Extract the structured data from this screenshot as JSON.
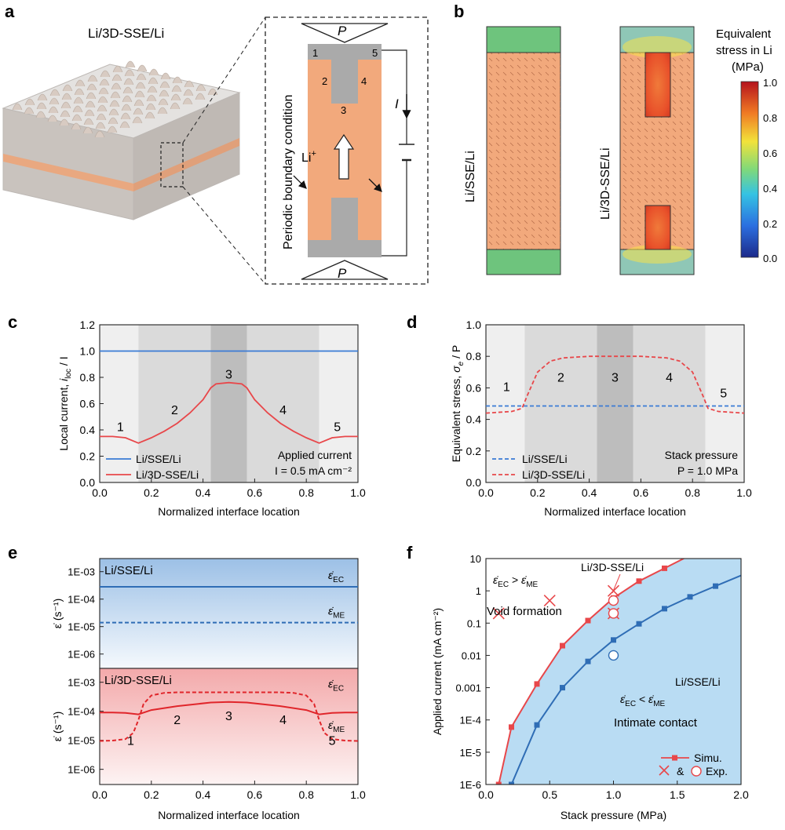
{
  "panel_a": {
    "label": "a",
    "title": "Li/3D-SSE/Li",
    "pressure": "P",
    "current": "I",
    "ion": "Li",
    "ion_sup": "+",
    "side_text": "Periodic boundary condition",
    "region_numbers": [
      "1",
      "2",
      "3",
      "4",
      "5"
    ],
    "colors": {
      "li": "#aaaaaa",
      "sse": "#f2a97c",
      "frame": "#222222"
    }
  },
  "panel_b": {
    "label": "b",
    "left_label": "Li/SSE/Li",
    "right_label": "Li/3D-SSE/Li",
    "colorbar_title_lines": [
      "Equivalent",
      "stress in Li",
      "(MPa)"
    ],
    "colorbar_ticks": [
      "1.0",
      "0.8",
      "0.6",
      "0.4",
      "0.2",
      "0.0"
    ],
    "colors": {
      "li_low_stress": "#6ec47d",
      "sse": "#f2a97c",
      "hot": "#e8502a"
    }
  },
  "chart_data": [
    {
      "panel": "c",
      "type": "line",
      "ylabel": "Local current, i_loc / I",
      "ylabel_main": "Local current, ",
      "ylabel_i": "i",
      "ylabel_sub": "loc",
      "ylabel_end": " / I",
      "xlabel": "Normalized interface location",
      "xlim": [
        0.0,
        1.0
      ],
      "ylim": [
        0.0,
        1.2
      ],
      "xticks": [
        "0.0",
        "0.2",
        "0.4",
        "0.6",
        "0.8",
        "1.0"
      ],
      "yticks": [
        "0.0",
        "0.2",
        "0.4",
        "0.6",
        "0.8",
        "1.0",
        "1.2"
      ],
      "region_labels": [
        "1",
        "2",
        "3",
        "4",
        "5"
      ],
      "series": [
        {
          "name": "Li/SSE/Li",
          "color": "#3a7bd5",
          "dashed": false,
          "x": [
            0.0,
            1.0
          ],
          "y": [
            1.0,
            1.0
          ]
        },
        {
          "name": "Li/3D-SSE/Li",
          "color": "#e8474a",
          "dashed": false,
          "x": [
            0.0,
            0.05,
            0.1,
            0.15,
            0.2,
            0.25,
            0.3,
            0.35,
            0.4,
            0.43,
            0.45,
            0.5,
            0.55,
            0.57,
            0.6,
            0.65,
            0.7,
            0.75,
            0.8,
            0.85,
            0.9,
            0.95,
            1.0
          ],
          "y": [
            0.35,
            0.35,
            0.34,
            0.3,
            0.34,
            0.39,
            0.45,
            0.53,
            0.63,
            0.72,
            0.75,
            0.76,
            0.75,
            0.72,
            0.63,
            0.53,
            0.45,
            0.39,
            0.34,
            0.3,
            0.34,
            0.35,
            0.35
          ]
        }
      ],
      "annotation_lines": [
        "Applied current",
        "I = 0.5 mA cm⁻²"
      ]
    },
    {
      "panel": "d",
      "type": "line",
      "ylabel": "Equivalent stress, σe / P",
      "ylabel_main": "Equivalent stress, ",
      "ylabel_sigma": "σ",
      "ylabel_sub": "e",
      "ylabel_end": " / P",
      "xlabel": "Normalized interface location",
      "xlim": [
        0.0,
        1.0
      ],
      "ylim": [
        0.0,
        1.0
      ],
      "xticks": [
        "0.0",
        "0.2",
        "0.4",
        "0.6",
        "0.8",
        "1.0"
      ],
      "yticks": [
        "0.0",
        "0.2",
        "0.4",
        "0.6",
        "0.8",
        "1.0"
      ],
      "region_labels": [
        "1",
        "2",
        "3",
        "4",
        "5"
      ],
      "series": [
        {
          "name": "Li/SSE/Li",
          "color": "#3a7bd5",
          "dashed": true,
          "x": [
            0.0,
            1.0
          ],
          "y": [
            0.485,
            0.485
          ]
        },
        {
          "name": "Li/3D-SSE/Li",
          "color": "#e8474a",
          "dashed": true,
          "x": [
            0.0,
            0.1,
            0.14,
            0.16,
            0.2,
            0.25,
            0.3,
            0.4,
            0.5,
            0.6,
            0.7,
            0.75,
            0.8,
            0.84,
            0.86,
            0.9,
            1.0
          ],
          "y": [
            0.44,
            0.45,
            0.47,
            0.55,
            0.7,
            0.77,
            0.79,
            0.8,
            0.8,
            0.8,
            0.79,
            0.77,
            0.7,
            0.55,
            0.47,
            0.45,
            0.44
          ]
        }
      ],
      "annotation_lines": [
        "Stack pressure",
        "P = 1.0 MPa"
      ]
    },
    {
      "panel": "e",
      "type": "line",
      "ylabel": "ε̇ (s⁻¹)",
      "xlabel": "Normalized interface location",
      "xlim": [
        0.0,
        1.0
      ],
      "yscale": "log",
      "ylim": [
        3e-07,
        0.003
      ],
      "xticks": [
        "0.0",
        "0.2",
        "0.4",
        "0.6",
        "0.8",
        "1.0"
      ],
      "yticks_top": [
        "1E-03",
        "1E-04",
        "1E-05",
        "1E-06"
      ],
      "yticks_bottom": [
        "1E-03",
        "1E-04",
        "1E-05",
        "1E-06"
      ],
      "top_title": "Li/SSE/Li",
      "bottom_title": "Li/3D-SSE/Li",
      "region_labels": [
        "1",
        "2",
        "3",
        "4",
        "5"
      ],
      "label_ec": "ε̇",
      "sub_ec": "EC",
      "sub_me": "ME",
      "top_series": [
        {
          "name": "ε̇EC",
          "color": "#2f6db5",
          "dashed": false,
          "x": [
            0.0,
            1.0
          ],
          "y": [
            0.00028,
            0.00028
          ]
        },
        {
          "name": "ε̇ME",
          "color": "#2f6db5",
          "dashed": true,
          "x": [
            0.0,
            1.0
          ],
          "y": [
            1.4e-05,
            1.4e-05
          ]
        }
      ],
      "bottom_series": [
        {
          "name": "ε̇EC",
          "color": "#e0262b",
          "dashed": false,
          "x": [
            0.0,
            0.05,
            0.1,
            0.15,
            0.2,
            0.3,
            0.43,
            0.5,
            0.57,
            0.7,
            0.8,
            0.85,
            0.9,
            0.95,
            1.0
          ],
          "y": [
            9e-05,
            9e-05,
            8.8e-05,
            7.8e-05,
            0.00011,
            0.00015,
            0.0002,
            0.00021,
            0.0002,
            0.00015,
            0.00011,
            7.8e-05,
            8.8e-05,
            9e-05,
            9e-05
          ]
        },
        {
          "name": "ε̇ME",
          "color": "#e0262b",
          "dashed": true,
          "x": [
            0.0,
            0.05,
            0.1,
            0.13,
            0.15,
            0.17,
            0.2,
            0.25,
            0.3,
            0.5,
            0.7,
            0.75,
            0.8,
            0.83,
            0.85,
            0.87,
            0.9,
            0.95,
            1.0
          ],
          "y": [
            9.5e-06,
            9.8e-06,
            1.1e-05,
            1.8e-05,
            5e-05,
            0.00018,
            0.00035,
            0.00043,
            0.00045,
            0.00045,
            0.00045,
            0.00043,
            0.00035,
            0.00018,
            5e-05,
            1.8e-05,
            1.1e-05,
            9.8e-06,
            9.5e-06
          ]
        }
      ]
    },
    {
      "panel": "f",
      "type": "scatter",
      "ylabel": "Applied current (mA cm⁻²)",
      "xlabel": "Stack pressure (MPa)",
      "xlim": [
        0.0,
        2.0
      ],
      "yscale": "log",
      "ylim": [
        1e-06,
        10
      ],
      "xticks": [
        "0.0",
        "0.5",
        "1.0",
        "1.5",
        "2.0"
      ],
      "yticks": [
        "10",
        "1",
        "0.1",
        "0.01",
        "0.001",
        "1E-4",
        "1E-5",
        "1E-6"
      ],
      "series": [
        {
          "name": "Li/3D-SSE/Li",
          "kind": "simulation",
          "color": "#e8474a",
          "x": [
            0.1,
            0.2,
            0.4,
            0.6,
            0.8,
            1.0,
            1.2,
            1.4
          ],
          "y": [
            1e-06,
            6e-05,
            0.0013,
            0.02,
            0.12,
            0.6,
            2.0,
            5.0
          ]
        },
        {
          "name": "Li/SSE/Li",
          "kind": "simulation",
          "color": "#2f6db5",
          "x": [
            0.2,
            0.4,
            0.6,
            0.8,
            1.0,
            1.2,
            1.4,
            1.6,
            1.8
          ],
          "y": [
            1e-06,
            7e-05,
            0.001,
            0.0065,
            0.03,
            0.095,
            0.28,
            0.65,
            1.4
          ]
        },
        {
          "name": "Void formation",
          "kind": "experiment-cross",
          "color": "#e8474a",
          "x": [
            0.1,
            0.5,
            1.0,
            1.0
          ],
          "y": [
            0.2,
            0.5,
            1.0,
            0.2
          ]
        },
        {
          "name": "Intimate contact",
          "kind": "experiment-circle",
          "color": "#e8474a",
          "x": [
            1.0,
            1.0
          ],
          "y": [
            0.5,
            0.2
          ]
        },
        {
          "name": "Intimate contact (Li/SSE/Li)",
          "kind": "experiment-circle",
          "color": "#2f6db5",
          "x": [
            1.0
          ],
          "y": [
            0.01
          ]
        }
      ],
      "region_upper": "Void formation",
      "region_lower": "Intimate contact",
      "legend_simu": "Simu.",
      "legend_amp": "&",
      "legend_exp": "Exp.",
      "curve_label_3d": "Li/3D-SSE/Li",
      "curve_label_flat": "Li/SSE/Li"
    }
  ]
}
